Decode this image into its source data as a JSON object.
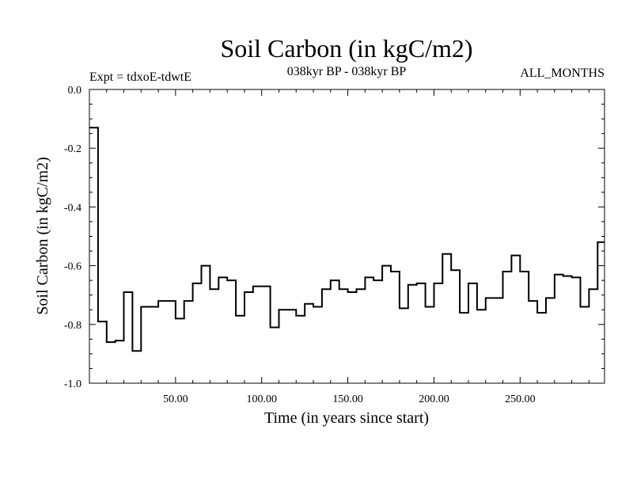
{
  "chart_data": {
    "type": "line",
    "title": "Soil Carbon (in kgC/m2)",
    "subtitle_left": "Expt = tdxoE-tdwtE",
    "subtitle_center": "038kyr BP - 038kyr BP",
    "subtitle_right": "ALL_MONTHS",
    "xlabel": "Time (in years since start)",
    "ylabel": "Soil Carbon (in kgC/m2)",
    "xlim": [
      0,
      299
    ],
    "ylim": [
      -1.0,
      0.0
    ],
    "x_ticks": [
      50,
      100,
      150,
      200,
      250
    ],
    "x_tick_labels": [
      "50.00",
      "100.00",
      "150.00",
      "200.00",
      "250.00"
    ],
    "y_ticks": [
      0.0,
      -0.2,
      -0.4,
      -0.6,
      -0.8,
      -1.0
    ],
    "y_tick_labels": [
      "0.0",
      "-0.2",
      "-0.4",
      "-0.6",
      "-0.8",
      "-1.0"
    ],
    "line_color": "#000000",
    "series": [
      {
        "step": "post",
        "x": [
          0,
          5,
          10,
          15,
          20,
          25,
          30,
          35,
          40,
          45,
          50,
          55,
          60,
          65,
          70,
          75,
          80,
          85,
          90,
          95,
          100,
          105,
          110,
          115,
          120,
          125,
          130,
          135,
          140,
          145,
          150,
          155,
          160,
          165,
          170,
          175,
          180,
          185,
          190,
          195,
          200,
          205,
          210,
          215,
          220,
          225,
          230,
          235,
          240,
          245,
          250,
          255,
          260,
          265,
          270,
          275,
          280,
          285,
          290,
          295,
          299
        ],
        "y": [
          -0.13,
          -0.79,
          -0.86,
          -0.855,
          -0.69,
          -0.89,
          -0.74,
          -0.74,
          -0.72,
          -0.72,
          -0.78,
          -0.72,
          -0.66,
          -0.6,
          -0.68,
          -0.64,
          -0.65,
          -0.77,
          -0.69,
          -0.67,
          -0.67,
          -0.81,
          -0.75,
          -0.75,
          -0.77,
          -0.73,
          -0.74,
          -0.68,
          -0.65,
          -0.68,
          -0.69,
          -0.68,
          -0.64,
          -0.65,
          -0.6,
          -0.62,
          -0.745,
          -0.665,
          -0.66,
          -0.74,
          -0.66,
          -0.56,
          -0.615,
          -0.76,
          -0.66,
          -0.75,
          -0.71,
          -0.71,
          -0.62,
          -0.565,
          -0.62,
          -0.72,
          -0.76,
          -0.71,
          -0.63,
          -0.635,
          -0.64,
          -0.74,
          -0.68,
          -0.52,
          -0.52
        ]
      }
    ]
  }
}
